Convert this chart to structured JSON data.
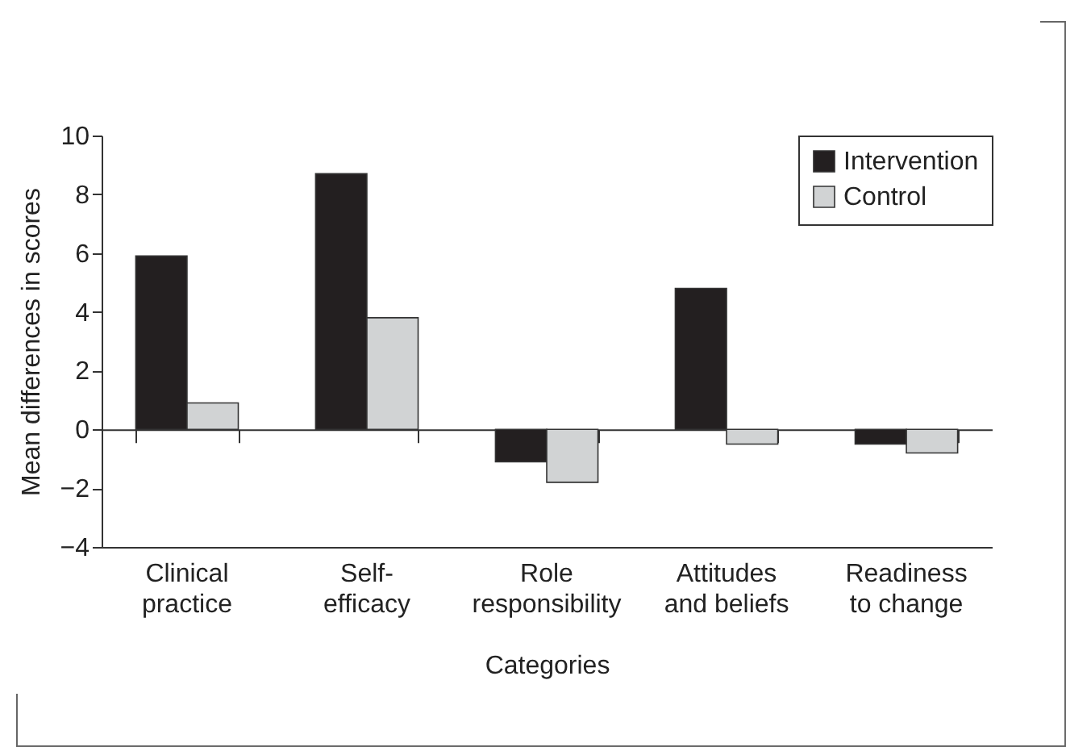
{
  "chart_data": {
    "type": "bar",
    "xlabel": "Categories",
    "ylabel": "Mean differences in scores",
    "categories": [
      "Clinical practice",
      "Self-efficacy",
      "Role responsibility",
      "Attitudes and beliefs",
      "Readiness to change"
    ],
    "series": [
      {
        "name": "Intervention",
        "color": "#231f20",
        "values": [
          5.9,
          8.7,
          -1.1,
          4.8,
          -0.5
        ]
      },
      {
        "name": "Control",
        "color": "#d1d3d4",
        "values": [
          0.9,
          3.8,
          -1.8,
          -0.5,
          -0.8
        ]
      }
    ],
    "ylim": [
      -4,
      10
    ],
    "yticks": [
      -4,
      -2,
      0,
      2,
      4,
      6,
      8,
      10
    ],
    "legend": "top right"
  }
}
